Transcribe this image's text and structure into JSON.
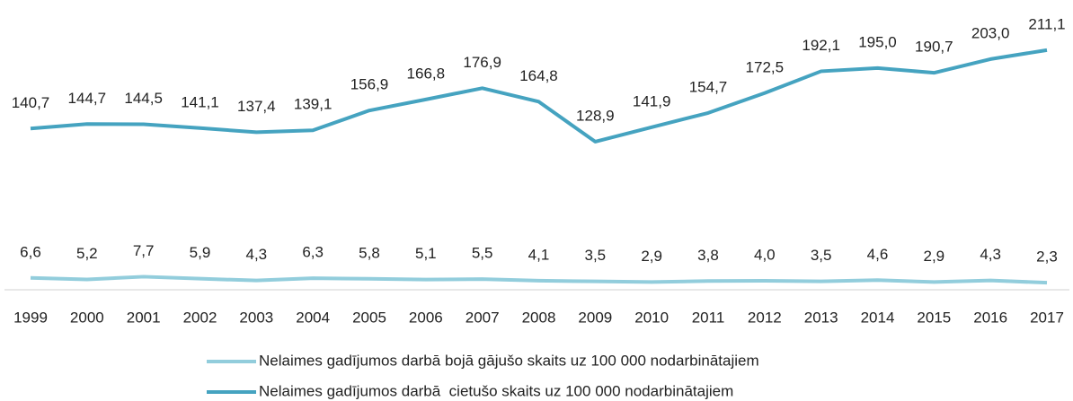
{
  "chart_data": {
    "type": "line",
    "categories": [
      "1999",
      "2000",
      "2001",
      "2002",
      "2003",
      "2004",
      "2005",
      "2006",
      "2007",
      "2008",
      "2009",
      "2010",
      "2011",
      "2012",
      "2013",
      "2014",
      "2015",
      "2016",
      "2017"
    ],
    "series": [
      {
        "name": "Nelaimes gadījumos darbā bojā gājušo skaits uz 100 000 nodarbinātajiem",
        "color": "#92cddc",
        "values": [
          6.6,
          5.2,
          7.7,
          5.9,
          4.3,
          6.3,
          5.8,
          5.1,
          5.5,
          4.1,
          3.5,
          2.9,
          3.8,
          4.0,
          3.5,
          4.6,
          2.9,
          4.3,
          2.3
        ],
        "value_labels": [
          "6,6",
          "5,2",
          "7,7",
          "5,9",
          "4,3",
          "6,3",
          "5,8",
          "5,1",
          "5,5",
          "4,1",
          "3,5",
          "2,9",
          "3,8",
          "4,0",
          "3,5",
          "4,6",
          "2,9",
          "4,3",
          "2,3"
        ]
      },
      {
        "name": "Nelaimes gadījumos darbā  cietušo skaits uz 100 000 nodarbinātajiem",
        "color": "#45a3c0",
        "values": [
          140.7,
          144.7,
          144.5,
          141.1,
          137.4,
          139.1,
          156.9,
          166.8,
          176.9,
          164.8,
          128.9,
          141.9,
          154.7,
          172.5,
          192.1,
          195.0,
          190.7,
          203.0,
          211.1
        ],
        "value_labels": [
          "140,7",
          "144,7",
          "144,5",
          "141,1",
          "137,4",
          "139,1",
          "156,9",
          "166,8",
          "176,9",
          "164,8",
          "128,9",
          "141,9",
          "154,7",
          "172,5",
          "192,1",
          "195,0",
          "190,7",
          "203,0",
          "211,1"
        ]
      }
    ],
    "ylim": [
      0,
      215
    ],
    "legend": "bottom"
  }
}
